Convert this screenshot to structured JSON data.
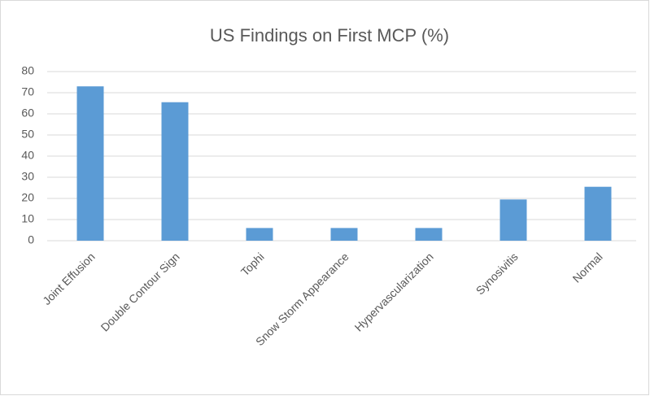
{
  "chart_data": {
    "type": "bar",
    "title": "US Findings on First MCP (%)",
    "categories": [
      "Joint Effusion",
      "Double Contour Sign",
      "Tophi",
      "Snow Storm Appearance",
      "Hypervascularization",
      "Synosivitis",
      "Normal"
    ],
    "values": [
      73,
      65.5,
      6,
      6,
      6,
      19.5,
      25.5
    ],
    "color": "#5b9bd5",
    "ylim": [
      0,
      80
    ],
    "yticks": [
      0,
      10,
      20,
      30,
      40,
      50,
      60,
      70,
      80
    ],
    "grid": true
  }
}
